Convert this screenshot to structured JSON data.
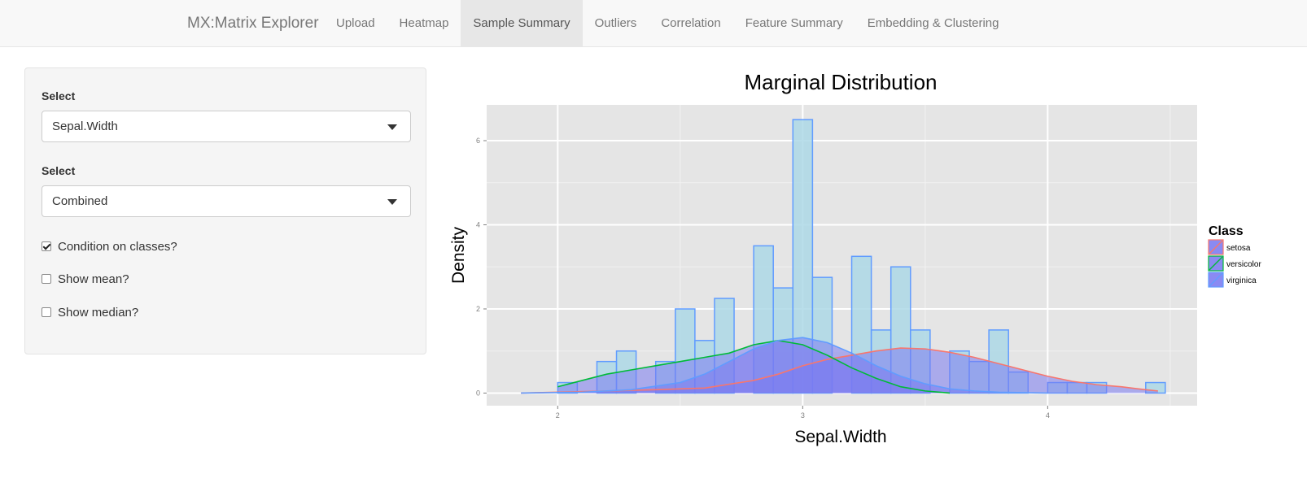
{
  "app": {
    "brand": "MX:Matrix Explorer"
  },
  "nav": {
    "tabs": [
      {
        "label": "Upload"
      },
      {
        "label": "Heatmap"
      },
      {
        "label": "Sample Summary",
        "active": true
      },
      {
        "label": "Outliers"
      },
      {
        "label": "Correlation"
      },
      {
        "label": "Feature Summary"
      },
      {
        "label": "Embedding & Clustering"
      }
    ]
  },
  "sidebar": {
    "select1": {
      "label": "Select",
      "value": "Sepal.Width"
    },
    "select2": {
      "label": "Select",
      "value": "Combined"
    },
    "checkboxes": [
      {
        "label": "Condition on classes?",
        "checked": true
      },
      {
        "label": "Show mean?",
        "checked": false
      },
      {
        "label": "Show median?",
        "checked": false
      }
    ]
  },
  "chart_data": {
    "type": "bar",
    "title": "Marginal Distribution",
    "xlabel": "Sepal.Width",
    "ylabel": "Density",
    "xlim": [
      1.71,
      4.61
    ],
    "ylim": [
      -0.3,
      6.85
    ],
    "xticks": [
      2,
      3,
      4
    ],
    "yticks": [
      0,
      2,
      4,
      6
    ],
    "bin_width": 0.08,
    "legend": {
      "title": "Class",
      "position": "right"
    },
    "grid": true,
    "bins": {
      "x0": [
        2.0,
        2.16,
        2.24,
        2.4,
        2.48,
        2.56,
        2.64,
        2.8,
        2.88,
        2.96,
        3.04,
        3.2,
        3.28,
        3.36,
        3.44,
        3.6,
        3.68,
        3.76,
        3.84,
        4.0,
        4.08,
        4.16,
        4.4
      ],
      "total": [
        0.25,
        0.75,
        1.0,
        0.75,
        2.0,
        1.25,
        2.25,
        3.5,
        2.5,
        6.5,
        2.75,
        3.25,
        1.5,
        3.0,
        1.5,
        1.0,
        0.75,
        1.5,
        0.5,
        0.25,
        0.25,
        0.25,
        0.25
      ]
    },
    "series": [
      {
        "name": "setosa",
        "color": "#F8766D",
        "density_x": [
          1.85,
          2.2,
          2.4,
          2.6,
          2.8,
          2.9,
          3.0,
          3.1,
          3.2,
          3.3,
          3.4,
          3.5,
          3.6,
          3.7,
          3.8,
          3.9,
          4.0,
          4.1,
          4.2,
          4.3,
          4.4,
          4.45
        ],
        "density_y": [
          0.0,
          0.05,
          0.08,
          0.12,
          0.3,
          0.45,
          0.65,
          0.8,
          0.9,
          1.0,
          1.07,
          1.05,
          0.97,
          0.85,
          0.7,
          0.55,
          0.4,
          0.28,
          0.2,
          0.15,
          0.08,
          0.05
        ]
      },
      {
        "name": "versicolor",
        "color": "#00BA38",
        "density_x": [
          2.0,
          2.1,
          2.2,
          2.3,
          2.4,
          2.5,
          2.6,
          2.7,
          2.8,
          2.9,
          3.0,
          3.1,
          3.2,
          3.3,
          3.4,
          3.5,
          3.6
        ],
        "density_y": [
          0.15,
          0.3,
          0.45,
          0.55,
          0.65,
          0.75,
          0.85,
          0.95,
          1.15,
          1.25,
          1.15,
          0.9,
          0.6,
          0.35,
          0.15,
          0.05,
          0.0
        ]
      },
      {
        "name": "virginica",
        "color": "#619CFF",
        "density_x": [
          1.85,
          2.1,
          2.3,
          2.5,
          2.6,
          2.7,
          2.8,
          2.9,
          3.0,
          3.1,
          3.2,
          3.3,
          3.4,
          3.5,
          3.6,
          3.7,
          3.8,
          3.9,
          4.0
        ],
        "density_y": [
          0.0,
          0.02,
          0.08,
          0.25,
          0.45,
          0.75,
          1.05,
          1.25,
          1.32,
          1.2,
          0.95,
          0.65,
          0.4,
          0.22,
          0.1,
          0.05,
          0.02,
          0.01,
          0.0
        ]
      }
    ]
  }
}
